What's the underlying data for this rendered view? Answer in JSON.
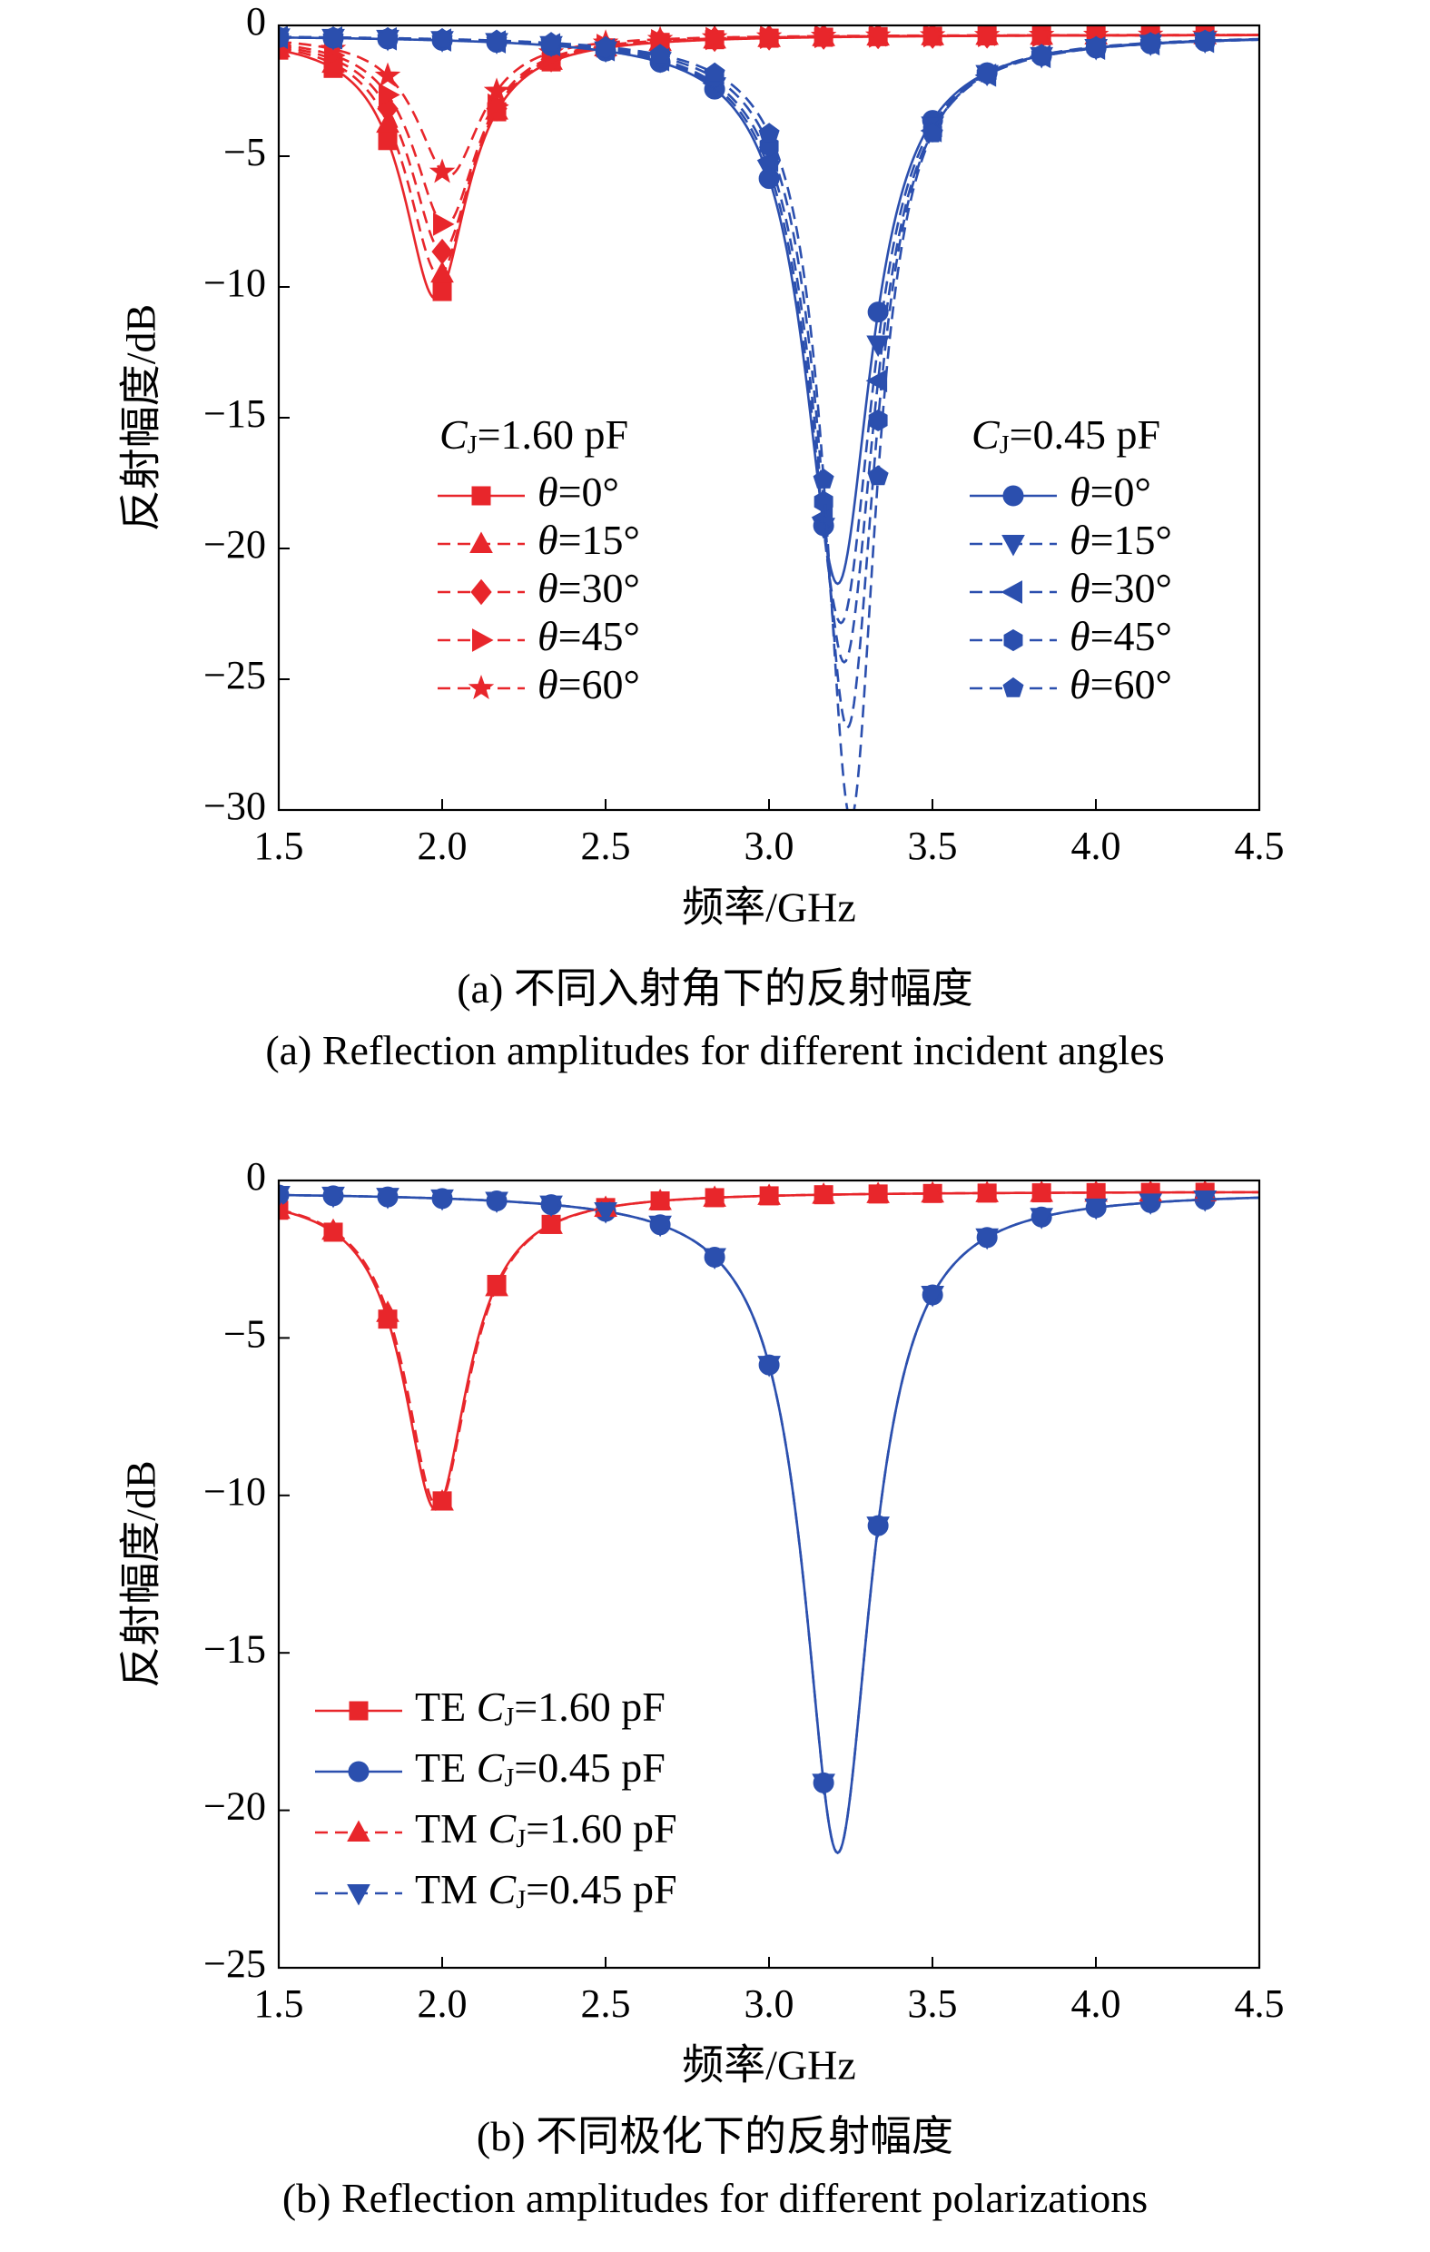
{
  "figure": {
    "caption_a_cn": "(a) 不同入射角下的反射幅度",
    "caption_a_en": "(a) Reflection amplitudes for different incident angles",
    "caption_b_cn": "(b) 不同极化下的反射幅度",
    "caption_b_en": "(b) Reflection amplitudes for different polarizations"
  },
  "colors": {
    "red": "#e8262b",
    "blue": "#2b4fae"
  },
  "chart_data": [
    {
      "type": "line",
      "xlabel": "频率/GHz",
      "ylabel": "反射幅度/dB",
      "xlim": [
        1.5,
        4.5
      ],
      "ylim": [
        -30,
        0
      ],
      "xticks": [
        "1.5",
        "2.0",
        "2.5",
        "3.0",
        "3.5",
        "4.0",
        "4.5"
      ],
      "yticks": [
        "0",
        "−5",
        "−10",
        "−15",
        "−20",
        "−25",
        "−30"
      ],
      "legend_groups": [
        {
          "title_sym": "C",
          "title_sub": "J",
          "title_rest": "=1.60 pF",
          "position": "left"
        },
        {
          "title_sym": "C",
          "title_sub": "J",
          "title_rest": "=0.45 pF",
          "position": "right"
        }
      ],
      "series": [
        {
          "name": "θ=0°",
          "group": 0,
          "color": "red",
          "dash": false,
          "marker": "square",
          "f0": 1.98,
          "depth": 10.1,
          "width": 0.12
        },
        {
          "name": "θ=15°",
          "group": 0,
          "color": "red",
          "dash": true,
          "marker": "triangle-up",
          "f0": 1.99,
          "depth": 9.2,
          "width": 0.12
        },
        {
          "name": "θ=30°",
          "group": 0,
          "color": "red",
          "dash": true,
          "marker": "diamond",
          "f0": 2.0,
          "depth": 8.3,
          "width": 0.12
        },
        {
          "name": "θ=45°",
          "group": 0,
          "color": "red",
          "dash": true,
          "marker": "triangle-right",
          "f0": 2.01,
          "depth": 7.3,
          "width": 0.12
        },
        {
          "name": "θ=60°",
          "group": 0,
          "color": "red",
          "dash": true,
          "marker": "star",
          "f0": 2.02,
          "depth": 5.4,
          "width": 0.12
        },
        {
          "name": "θ=0°",
          "group": 1,
          "color": "blue",
          "dash": false,
          "marker": "circle",
          "f0": 3.21,
          "depth": 21.0,
          "width": 0.125
        },
        {
          "name": "θ=15°",
          "group": 1,
          "color": "blue",
          "dash": true,
          "marker": "triangle-down",
          "f0": 3.22,
          "depth": 22.5,
          "width": 0.12
        },
        {
          "name": "θ=30°",
          "group": 1,
          "color": "blue",
          "dash": true,
          "marker": "triangle-left",
          "f0": 3.23,
          "depth": 24.0,
          "width": 0.115
        },
        {
          "name": "θ=45°",
          "group": 1,
          "color": "blue",
          "dash": true,
          "marker": "hexagon",
          "f0": 3.24,
          "depth": 26.5,
          "width": 0.105
        },
        {
          "name": "θ=60°",
          "group": 1,
          "color": "blue",
          "dash": true,
          "marker": "pentagon",
          "f0": 3.25,
          "depth": 30.0,
          "width": 0.095
        }
      ]
    },
    {
      "type": "line",
      "xlabel": "频率/GHz",
      "ylabel": "反射幅度/dB",
      "xlim": [
        1.5,
        4.5
      ],
      "ylim": [
        -25,
        0
      ],
      "xticks": [
        "1.5",
        "2.0",
        "2.5",
        "3.0",
        "3.5",
        "4.0",
        "4.5"
      ],
      "yticks": [
        "0",
        "−5",
        "−10",
        "−15",
        "−20",
        "−25"
      ],
      "legend_position": "lower-left",
      "series": [
        {
          "name_pre": "TE ",
          "name_sym": "C",
          "name_sub": "J",
          "name_rest": "=1.60 pF",
          "color": "red",
          "dash": false,
          "marker": "square",
          "f0": 1.98,
          "depth": 10.1,
          "width": 0.12
        },
        {
          "name_pre": "TE ",
          "name_sym": "C",
          "name_sub": "J",
          "name_rest": "=0.45 pF",
          "color": "blue",
          "dash": false,
          "marker": "circle",
          "f0": 3.21,
          "depth": 21.0,
          "width": 0.125
        },
        {
          "name_pre": "TM ",
          "name_sym": "C",
          "name_sub": "J",
          "name_rest": "=1.60 pF",
          "color": "red",
          "dash": true,
          "marker": "triangle-up",
          "f0": 1.985,
          "depth": 10.0,
          "width": 0.12
        },
        {
          "name_pre": "TM ",
          "name_sym": "C",
          "name_sub": "J",
          "name_rest": "=0.45 pF",
          "color": "blue",
          "dash": true,
          "marker": "triangle-down",
          "f0": 3.21,
          "depth": 21.0,
          "width": 0.125
        }
      ]
    }
  ]
}
